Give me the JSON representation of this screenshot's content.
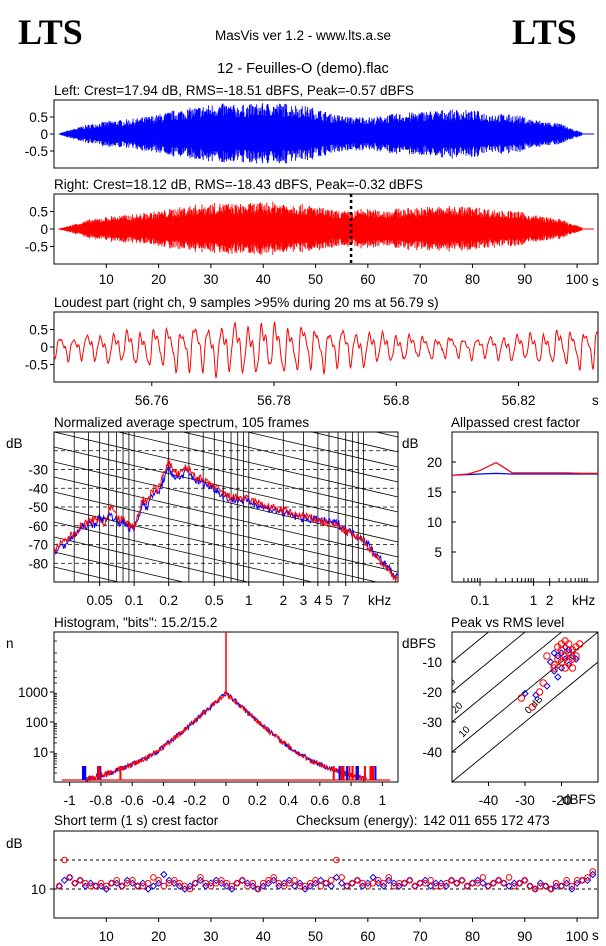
{
  "header": {
    "logo_left": "LTS",
    "logo_right": "LTS",
    "app_title": "MasVis ver 1.2 - www.lts.a.se",
    "file_title": "12 - Feuilles-O (demo).flac"
  },
  "colors": {
    "left": "#0000ff",
    "right": "#ff0000",
    "axis": "#000000"
  },
  "chart_data": [
    {
      "id": "left",
      "type": "line",
      "title": "Left: Crest=17.94 dB, RMS=-18.51 dBFS, Peak=-0.57 dBFS",
      "xlim": [
        0,
        104
      ],
      "ylim": [
        -1,
        1
      ],
      "y_ticks": [
        0.5,
        0,
        -0.5
      ],
      "y_tick_labels": [
        "0.5",
        "0",
        "-0.5"
      ],
      "color": "#0000ff",
      "envelope_peak": [
        0.02,
        0.12,
        0.22,
        0.3,
        0.35,
        0.4,
        0.42,
        0.45,
        0.5,
        0.55,
        0.62,
        0.7,
        0.75,
        0.8,
        0.85,
        0.9,
        0.9,
        0.85,
        0.88,
        0.9,
        0.92,
        0.92,
        0.9,
        0.85,
        0.8,
        0.72,
        0.6,
        0.55,
        0.5,
        0.52,
        0.5,
        0.55,
        0.6,
        0.62,
        0.65,
        0.68,
        0.7,
        0.72,
        0.72,
        0.7,
        0.68,
        0.62,
        0.6,
        0.58,
        0.55,
        0.45,
        0.4,
        0.35,
        0.3,
        0.15,
        0.05
      ]
    },
    {
      "id": "right",
      "type": "line",
      "title": "Right: Crest=18.12 dB, RMS=-18.43 dBFS, Peak=-0.32 dBFS",
      "xlim": [
        0,
        104
      ],
      "ylim": [
        -1,
        1
      ],
      "y_ticks": [
        0.5,
        0,
        -0.5
      ],
      "y_tick_labels": [
        "0.5",
        "0",
        "-0.5"
      ],
      "x_ticks": [
        10,
        20,
        30,
        40,
        50,
        60,
        70,
        80,
        90,
        100
      ],
      "x_tick_labels": [
        "10",
        "20",
        "30",
        "40",
        "50",
        "60",
        "70",
        "80",
        "90",
        "100"
      ],
      "x_unit": "s",
      "marker_x": 56.79,
      "color": "#ff0000",
      "envelope_peak": [
        0.02,
        0.1,
        0.2,
        0.28,
        0.32,
        0.38,
        0.4,
        0.42,
        0.45,
        0.5,
        0.55,
        0.6,
        0.65,
        0.7,
        0.72,
        0.75,
        0.75,
        0.72,
        0.74,
        0.76,
        0.78,
        0.78,
        0.76,
        0.72,
        0.68,
        0.62,
        0.55,
        0.52,
        0.5,
        0.6,
        0.55,
        0.55,
        0.58,
        0.6,
        0.62,
        0.64,
        0.65,
        0.66,
        0.66,
        0.65,
        0.62,
        0.58,
        0.55,
        0.52,
        0.5,
        0.42,
        0.38,
        0.32,
        0.28,
        0.15,
        0.05
      ]
    },
    {
      "id": "loudest",
      "type": "line",
      "title": "Loudest part (right ch, 9 samples >95% during 20 ms at 56.79 s)",
      "xlim": [
        56.744,
        56.833
      ],
      "ylim": [
        -1,
        1
      ],
      "y_ticks": [
        0.5,
        0,
        -0.5
      ],
      "y_tick_labels": [
        "0.5",
        "0",
        "-0.5"
      ],
      "x_ticks": [
        56.76,
        56.78,
        56.8,
        56.82
      ],
      "x_tick_labels": [
        "56.76",
        "56.78",
        "56.8",
        "56.82"
      ],
      "x_unit": "s",
      "color": "#ff0000",
      "cycle_ms": 2.2
    },
    {
      "id": "spectrum",
      "type": "line",
      "title": "Normalized average spectrum, 105 frames",
      "ylabel": "dB",
      "x_scale": "log",
      "xlim": [
        0.02,
        20
      ],
      "ylim": [
        -90,
        -10
      ],
      "y_ticks": [
        -30,
        -40,
        -50,
        -60,
        -70,
        -80
      ],
      "y_tick_labels": [
        "-30",
        "-40",
        "-50",
        "-60",
        "-70",
        "-80"
      ],
      "x_ticks": [
        0.05,
        0.1,
        0.2,
        0.5,
        1,
        2,
        3,
        4,
        5,
        7
      ],
      "x_tick_labels": [
        "0.05",
        "0.1",
        "0.2",
        "0.5",
        "1",
        "2",
        "3",
        "4",
        "5",
        "7"
      ],
      "x_unit": "kHz",
      "freqs_khz": [
        0.02,
        0.025,
        0.03,
        0.035,
        0.04,
        0.045,
        0.05,
        0.055,
        0.06,
        0.065,
        0.07,
        0.075,
        0.08,
        0.085,
        0.09,
        0.1,
        0.11,
        0.12,
        0.13,
        0.14,
        0.15,
        0.16,
        0.17,
        0.18,
        0.2,
        0.22,
        0.25,
        0.28,
        0.3,
        0.35,
        0.4,
        0.45,
        0.5,
        0.6,
        0.7,
        0.8,
        1,
        1.2,
        1.5,
        2,
        2.5,
        3,
        4,
        5,
        6,
        7,
        8,
        10,
        12,
        15,
        20
      ],
      "series": [
        {
          "name": "Left",
          "color": "#0000ff",
          "values": [
            -74,
            -70,
            -65,
            -61,
            -59,
            -59,
            -56,
            -57,
            -54,
            -55,
            -57,
            -58,
            -59,
            -59,
            -61,
            -62,
            -55,
            -47,
            -50,
            -45,
            -42,
            -43,
            -40,
            -35,
            -30,
            -33,
            -35,
            -31,
            -32,
            -36,
            -37,
            -39,
            -40,
            -44,
            -46,
            -46,
            -47,
            -49,
            -51,
            -53,
            -55,
            -56,
            -57,
            -58,
            -59,
            -62,
            -64,
            -67,
            -73,
            -80,
            -88
          ]
        },
        {
          "name": "Right",
          "color": "#ff0000",
          "values": [
            -73,
            -68,
            -64,
            -60,
            -58,
            -57,
            -56,
            -60,
            -52,
            -49,
            -55,
            -57,
            -56,
            -58,
            -60,
            -61,
            -53,
            -45,
            -48,
            -43,
            -40,
            -41,
            -38,
            -31,
            -26,
            -31,
            -33,
            -29,
            -30,
            -34,
            -36,
            -38,
            -39,
            -43,
            -45,
            -45,
            -46,
            -48,
            -50,
            -52,
            -54,
            -55,
            -57,
            -59,
            -60,
            -63,
            -65,
            -68,
            -74,
            -81,
            -89
          ]
        }
      ]
    },
    {
      "id": "allpass",
      "type": "line",
      "title": "Allpassed crest factor",
      "ylabel": "dB",
      "x_scale": "log",
      "xlim": [
        0.03,
        16
      ],
      "ylim": [
        0,
        25
      ],
      "y_ticks": [
        20,
        15,
        10,
        5
      ],
      "y_tick_labels": [
        "20",
        "15",
        "10",
        "5"
      ],
      "x_ticks": [
        0.1,
        1,
        2
      ],
      "x_tick_labels": [
        "0.1",
        "1",
        "2"
      ],
      "x_unit": "kHz",
      "x": [
        0.03,
        0.06,
        0.1,
        0.2,
        0.4,
        1,
        2,
        4,
        8,
        16
      ],
      "series": [
        {
          "name": "Left",
          "color": "#0000ff",
          "values": [
            17.8,
            17.9,
            18.0,
            18.1,
            18.0,
            18.0,
            18.0,
            18.0,
            18.0,
            18.0
          ]
        },
        {
          "name": "Right",
          "color": "#ff0000",
          "values": [
            17.8,
            18.0,
            18.6,
            19.9,
            18.2,
            18.2,
            18.2,
            18.2,
            18.1,
            18.1
          ]
        }
      ]
    },
    {
      "id": "histogram",
      "type": "line",
      "title": "Histogram, \"bits\": 15.2/15.2",
      "ylabel": "n",
      "y_scale": "log",
      "xlim": [
        -1.1,
        1.1
      ],
      "ylim": [
        1,
        100000
      ],
      "y_ticks": [
        1000,
        100,
        10
      ],
      "y_tick_labels": [
        "1000",
        "100",
        "10"
      ],
      "x_ticks": [
        -1,
        -0.8,
        -0.6,
        -0.4,
        -0.2,
        0,
        0.2,
        0.4,
        0.6,
        0.8,
        1
      ],
      "x_tick_labels": [
        "-1",
        "-0.8",
        "-0.6",
        "-0.4",
        "-0.2",
        "0",
        "0.2",
        "0.4",
        "0.6",
        "0.8",
        "1"
      ],
      "x": [
        0.0,
        0.05,
        0.1,
        0.15,
        0.2,
        0.25,
        0.3,
        0.35,
        0.4,
        0.45,
        0.5,
        0.55,
        0.6,
        0.65,
        0.7,
        0.75,
        0.8,
        0.85,
        0.9
      ],
      "values": [
        900,
        550,
        320,
        190,
        110,
        65,
        40,
        25,
        15,
        10,
        7,
        5,
        4,
        3,
        2.5,
        2,
        1.7,
        1.4,
        1.2
      ]
    },
    {
      "id": "peakrms",
      "type": "scatter",
      "title": "Peak vs RMS level",
      "ylabel": "dBFS",
      "xlabel": "dBFS",
      "xlim": [
        -50,
        -10
      ],
      "ylim": [
        -50,
        0
      ],
      "y_ticks": [
        -10,
        -20,
        -30,
        -40
      ],
      "y_tick_labels": [
        "-10",
        "-20",
        "-30",
        "-40"
      ],
      "x_ticks": [
        -40,
        -30,
        -20
      ],
      "x_tick_labels": [
        "-40",
        "-30",
        "-20"
      ],
      "crest_lines": [
        0,
        10,
        20,
        30,
        40
      ],
      "crest_labels": [
        "0 dB",
        "10",
        "20",
        "30",
        "40"
      ],
      "series": [
        {
          "name": "Left",
          "color": "#0000ff",
          "points": [
            [
              -30,
              -20.5
            ],
            [
              -27,
              -21
            ],
            [
              -24,
              -18
            ],
            [
              -23,
              -10
            ],
            [
              -22,
              -13
            ],
            [
              -21,
              -8
            ],
            [
              -20,
              -7
            ],
            [
              -19,
              -9
            ],
            [
              -18,
              -11
            ],
            [
              -20,
              -12
            ],
            [
              -21,
              -15
            ],
            [
              -17,
              -8
            ],
            [
              -16,
              -9
            ],
            [
              -22,
              -7
            ],
            [
              -19,
              -5
            ],
            [
              -18,
              -6
            ]
          ]
        },
        {
          "name": "Right",
          "color": "#ff0000",
          "points": [
            [
              -31,
              -22
            ],
            [
              -28,
              -25
            ],
            [
              -26,
              -20
            ],
            [
              -25,
              -17
            ],
            [
              -24,
              -8
            ],
            [
              -22,
              -12
            ],
            [
              -21,
              -9
            ],
            [
              -20,
              -10
            ],
            [
              -20,
              -6
            ],
            [
              -19,
              -8
            ],
            [
              -19,
              -12
            ],
            [
              -18,
              -7
            ],
            [
              -18,
              -10
            ],
            [
              -17,
              -6
            ],
            [
              -17,
              -9
            ],
            [
              -16,
              -5
            ],
            [
              -16,
              -8
            ],
            [
              -15,
              -4
            ],
            [
              -21,
              -5
            ],
            [
              -20,
              -4
            ],
            [
              -19,
              -3
            ],
            [
              -18,
              -4
            ],
            [
              -22,
              -11
            ],
            [
              -17,
              -12
            ]
          ]
        }
      ]
    },
    {
      "id": "shortcrest",
      "type": "scatter",
      "title": "Short term (1 s) crest factor",
      "checksum_label": "Checksum (energy):",
      "checksum_value": "142 011 655 172 473",
      "ylabel": "dB",
      "xlim": [
        0,
        104
      ],
      "ylim": [
        0,
        30
      ],
      "y_ticks": [
        10
      ],
      "y_tick_labels": [
        "10"
      ],
      "dashed_y": [
        10,
        20
      ],
      "x_ticks": [
        10,
        20,
        30,
        40,
        50,
        60,
        70,
        80,
        90,
        100
      ],
      "x_tick_labels": [
        "10",
        "20",
        "30",
        "40",
        "50",
        "60",
        "70",
        "80",
        "90",
        "100"
      ],
      "x_unit": "s",
      "series": [
        {
          "name": "Left",
          "color": "#0000ff",
          "values": [
            11,
            13,
            14,
            12,
            13,
            11,
            12,
            11,
            11,
            10,
            12,
            12,
            11,
            13,
            12,
            11,
            12,
            10,
            11,
            12,
            15,
            13,
            12,
            11,
            10,
            11,
            12,
            13,
            11,
            12,
            13,
            12,
            11,
            10,
            12,
            13,
            12,
            11,
            10,
            11,
            12,
            13,
            11,
            12,
            13,
            11,
            12,
            10,
            11,
            12,
            13,
            12,
            11,
            14,
            12,
            11,
            12,
            13,
            11,
            12,
            14,
            12,
            11,
            13,
            12,
            11,
            12,
            13,
            11,
            12,
            13,
            11,
            12,
            12,
            11,
            13,
            12,
            13,
            11,
            12,
            13,
            12,
            11,
            12,
            13,
            12,
            11,
            12,
            12,
            13,
            11,
            10,
            12,
            11,
            10,
            11,
            11,
            12,
            10,
            12,
            13,
            13,
            15
          ]
        },
        {
          "name": "Right",
          "color": "#ff0000",
          "values": [
            11,
            20,
            14,
            12,
            13,
            12,
            11,
            11,
            12,
            11,
            12,
            13,
            11,
            12,
            13,
            11,
            11,
            12,
            14,
            13,
            11,
            12,
            13,
            12,
            11,
            10,
            12,
            14,
            12,
            11,
            12,
            13,
            12,
            11,
            12,
            13,
            11,
            12,
            10,
            12,
            13,
            14,
            12,
            11,
            12,
            13,
            11,
            11,
            12,
            13,
            11,
            12,
            13,
            20,
            14,
            11,
            12,
            13,
            12,
            11,
            12,
            13,
            12,
            14,
            11,
            12,
            12,
            13,
            11,
            12,
            12,
            13,
            11,
            11,
            12,
            13,
            12,
            13,
            11,
            12,
            12,
            14,
            11,
            12,
            13,
            12,
            14,
            11,
            12,
            13,
            11,
            10,
            11,
            11,
            10,
            12,
            11,
            13,
            11,
            13,
            13,
            14,
            16
          ]
        }
      ]
    }
  ]
}
